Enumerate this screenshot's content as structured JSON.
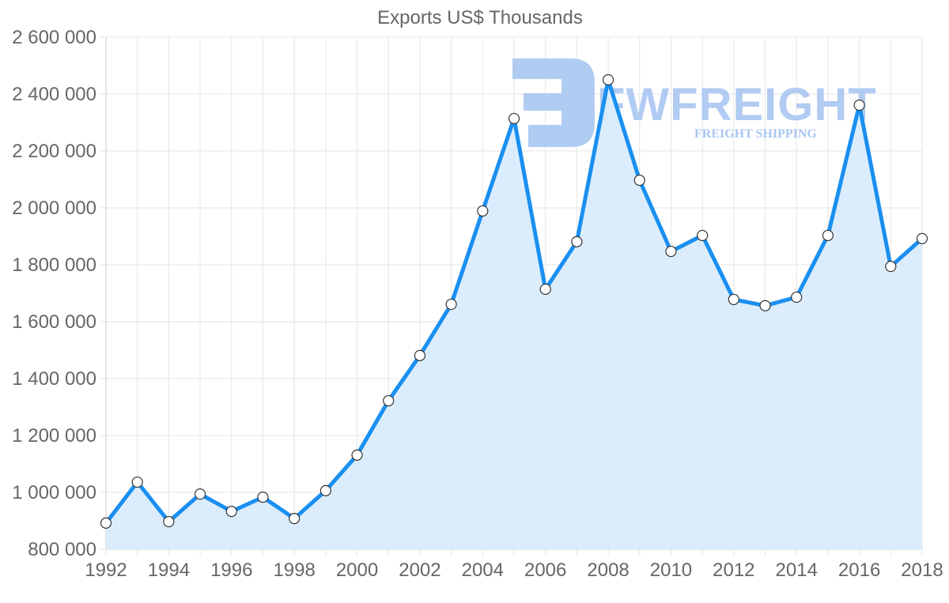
{
  "watermark": {
    "brand": "FWFREIGHT",
    "tagline": "FREIGHT SHIPPING",
    "color": "#a9c6f2"
  },
  "colors": {
    "line": "#1a8ff0",
    "fill": "#d9ecfc",
    "point_fill": "#ffffff",
    "point_stroke": "#333333",
    "text": "#666666",
    "grid": "#e6e6e6"
  },
  "chart_data": {
    "type": "area",
    "title": "Exports US$ Thousands",
    "xlabel": "",
    "ylabel": "",
    "x": [
      1992,
      1993,
      1994,
      1995,
      1996,
      1997,
      1998,
      1999,
      2000,
      2001,
      2002,
      2003,
      2004,
      2005,
      2006,
      2007,
      2008,
      2009,
      2010,
      2011,
      2012,
      2013,
      2014,
      2015,
      2016,
      2017,
      2018
    ],
    "series": [
      {
        "name": "Exports US$ Thousands",
        "values": [
          892000,
          1036000,
          897000,
          994000,
          933000,
          983000,
          908000,
          1006000,
          1131000,
          1322000,
          1481000,
          1661000,
          1989000,
          2314000,
          1714000,
          1881000,
          2450000,
          2097000,
          1847000,
          1903000,
          1678000,
          1656000,
          1686000,
          1903000,
          2361000,
          1794000,
          1892000
        ]
      }
    ],
    "ylim": [
      800000,
      2600000
    ],
    "y_ticks": [
      800000,
      1000000,
      1200000,
      1400000,
      1600000,
      1800000,
      2000000,
      2200000,
      2400000,
      2600000
    ],
    "y_tick_labels": [
      "800 000",
      "1 000 000",
      "1 200 000",
      "1 400 000",
      "1 600 000",
      "1 800 000",
      "2 000 000",
      "2 200 000",
      "2 400 000",
      "2 600 000"
    ],
    "x_tick_labels": [
      "1992",
      "1994",
      "1996",
      "1998",
      "2000",
      "2002",
      "2004",
      "2006",
      "2008",
      "2010",
      "2012",
      "2014",
      "2016",
      "2018"
    ],
    "grid": true,
    "legend": "none"
  }
}
